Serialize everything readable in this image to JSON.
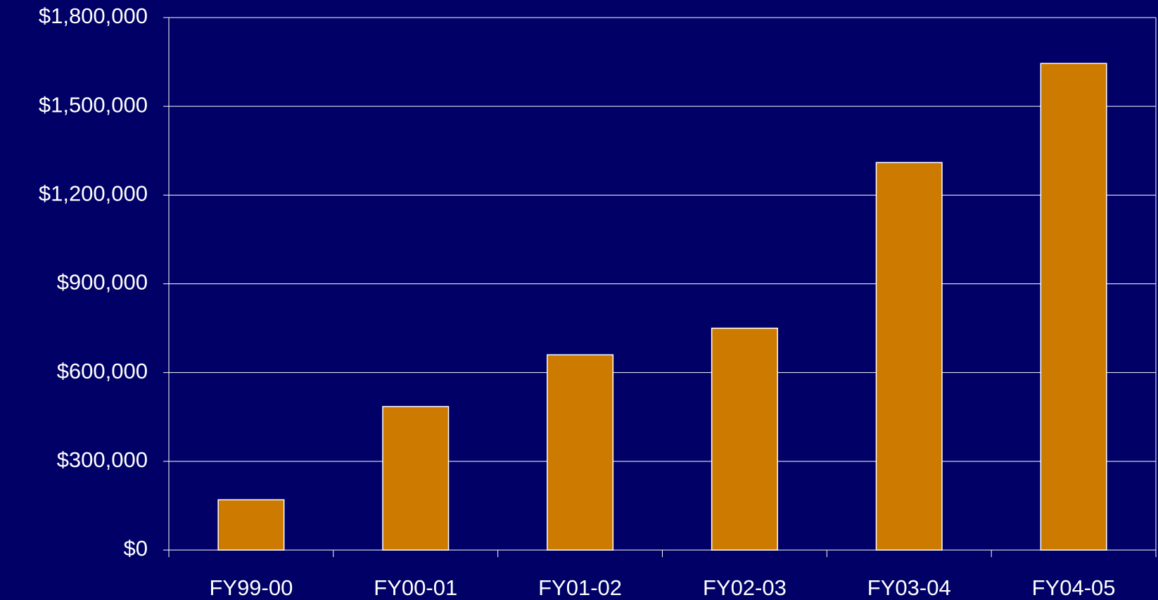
{
  "chart_data": {
    "type": "bar",
    "categories": [
      "FY99-00",
      "FY00-01",
      "FY01-02",
      "FY02-03",
      "FY03-04",
      "FY04-05"
    ],
    "values": [
      170000,
      485000,
      660000,
      750000,
      1310000,
      1645000
    ],
    "color": "#cc7a00",
    "ylim": [
      0,
      1800000
    ],
    "yticks": [
      {
        "value": 0,
        "label": "$0"
      },
      {
        "value": 300000,
        "label": "$300,000"
      },
      {
        "value": 600000,
        "label": "$600,000"
      },
      {
        "value": 900000,
        "label": "$900,000"
      },
      {
        "value": 1200000,
        "label": "$1,200,000"
      },
      {
        "value": 1500000,
        "label": "$1,500,000"
      },
      {
        "value": 1800000,
        "label": "$1,800,000"
      }
    ],
    "grid": true
  }
}
